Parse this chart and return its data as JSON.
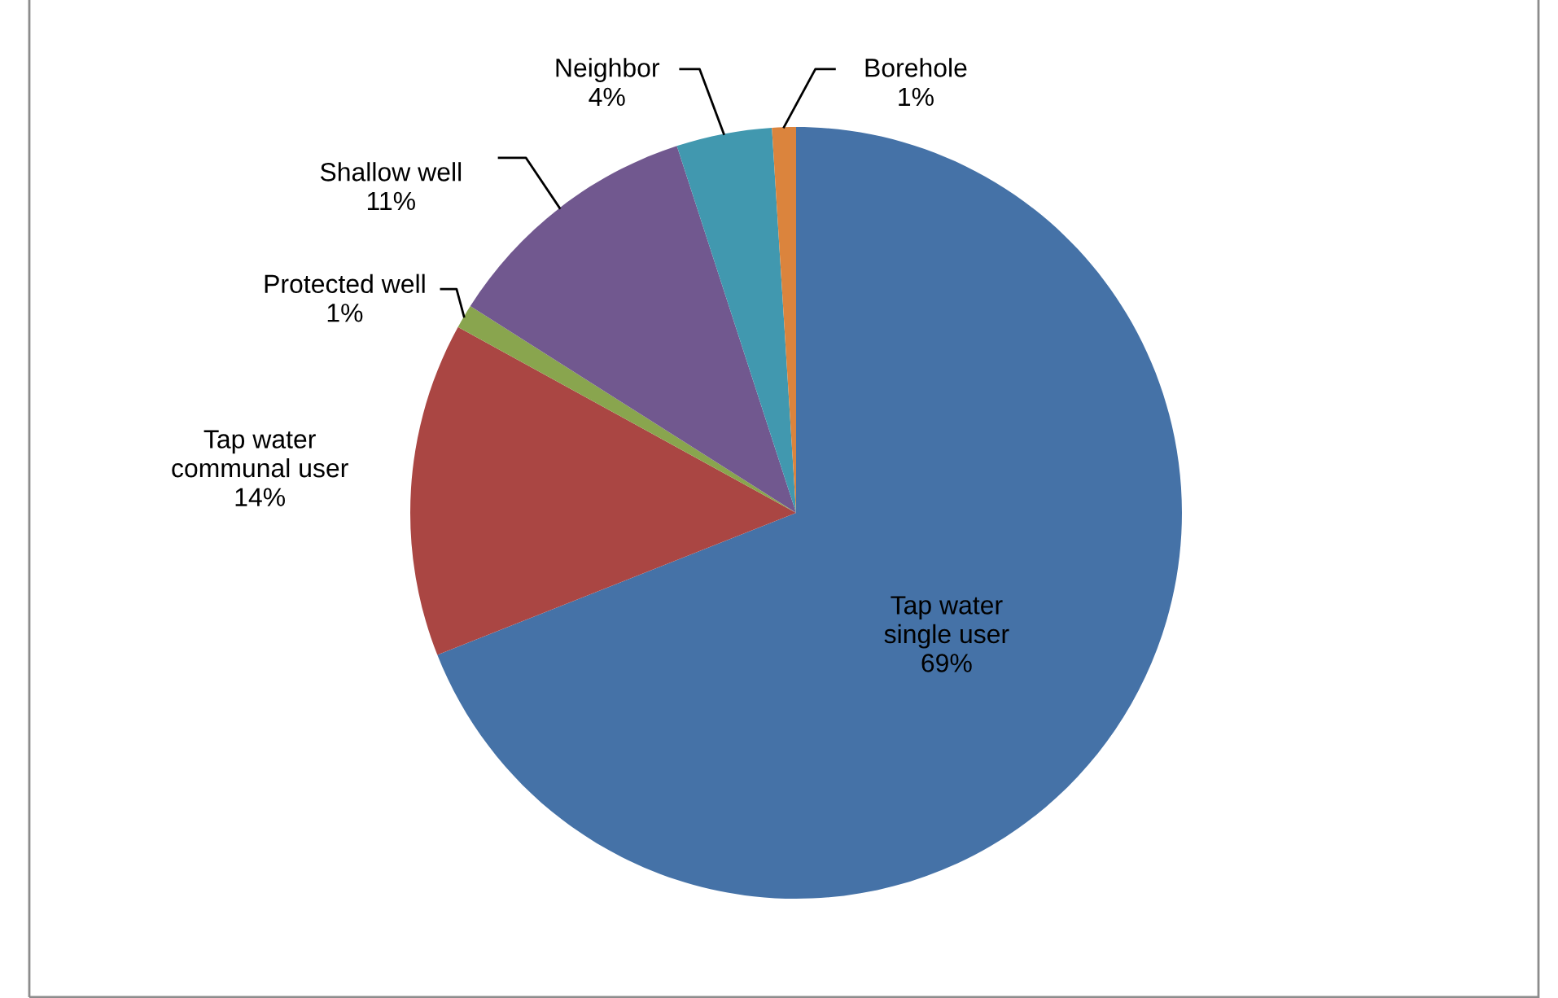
{
  "chart_data": {
    "type": "pie",
    "categories": [
      "Tap water single user",
      "Tap water communal user",
      "Protected well",
      "Shallow well",
      "Neighbor",
      "Borehole"
    ],
    "values": [
      69,
      14,
      1,
      11,
      4,
      1
    ],
    "value_labels": [
      "69%",
      "14%",
      "1%",
      "11%",
      "4%",
      "1%"
    ],
    "colors": [
      "#4572a7",
      "#aa4643",
      "#89a54e",
      "#71588f",
      "#4198af",
      "#db843d"
    ],
    "legend": false
  }
}
